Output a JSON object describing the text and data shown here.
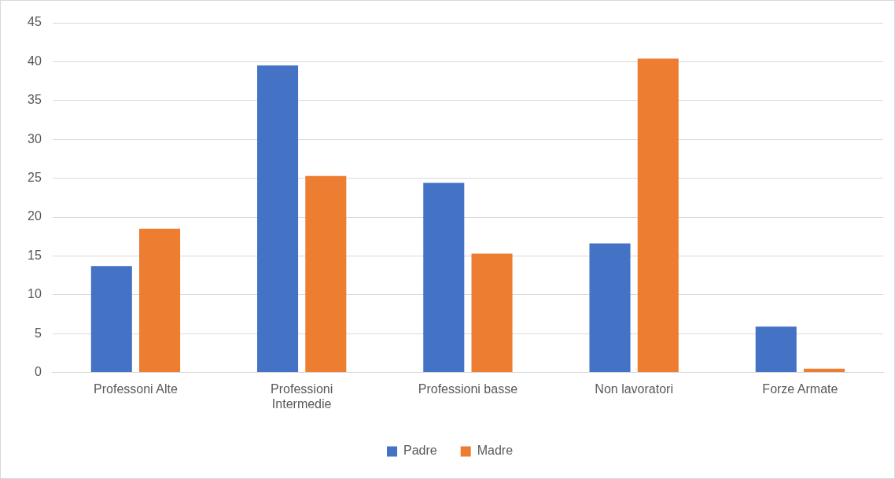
{
  "chart_data": {
    "type": "bar",
    "categories": [
      "Professoni Alte",
      "Professioni Intermedie",
      "Professioni basse",
      "Non lavoratori",
      "Forze Armate"
    ],
    "series": [
      {
        "name": "Padre",
        "color": "#4472c4",
        "values": [
          13.7,
          39.5,
          24.4,
          16.6,
          5.9
        ]
      },
      {
        "name": "Madre",
        "color": "#ed7d31",
        "values": [
          18.5,
          25.3,
          15.3,
          40.4,
          0.5
        ]
      }
    ],
    "ylim": [
      0,
      45
    ],
    "yticks": [
      0,
      5,
      10,
      15,
      20,
      25,
      30,
      35,
      40,
      45
    ],
    "grid": "y",
    "legend": "bottom"
  }
}
